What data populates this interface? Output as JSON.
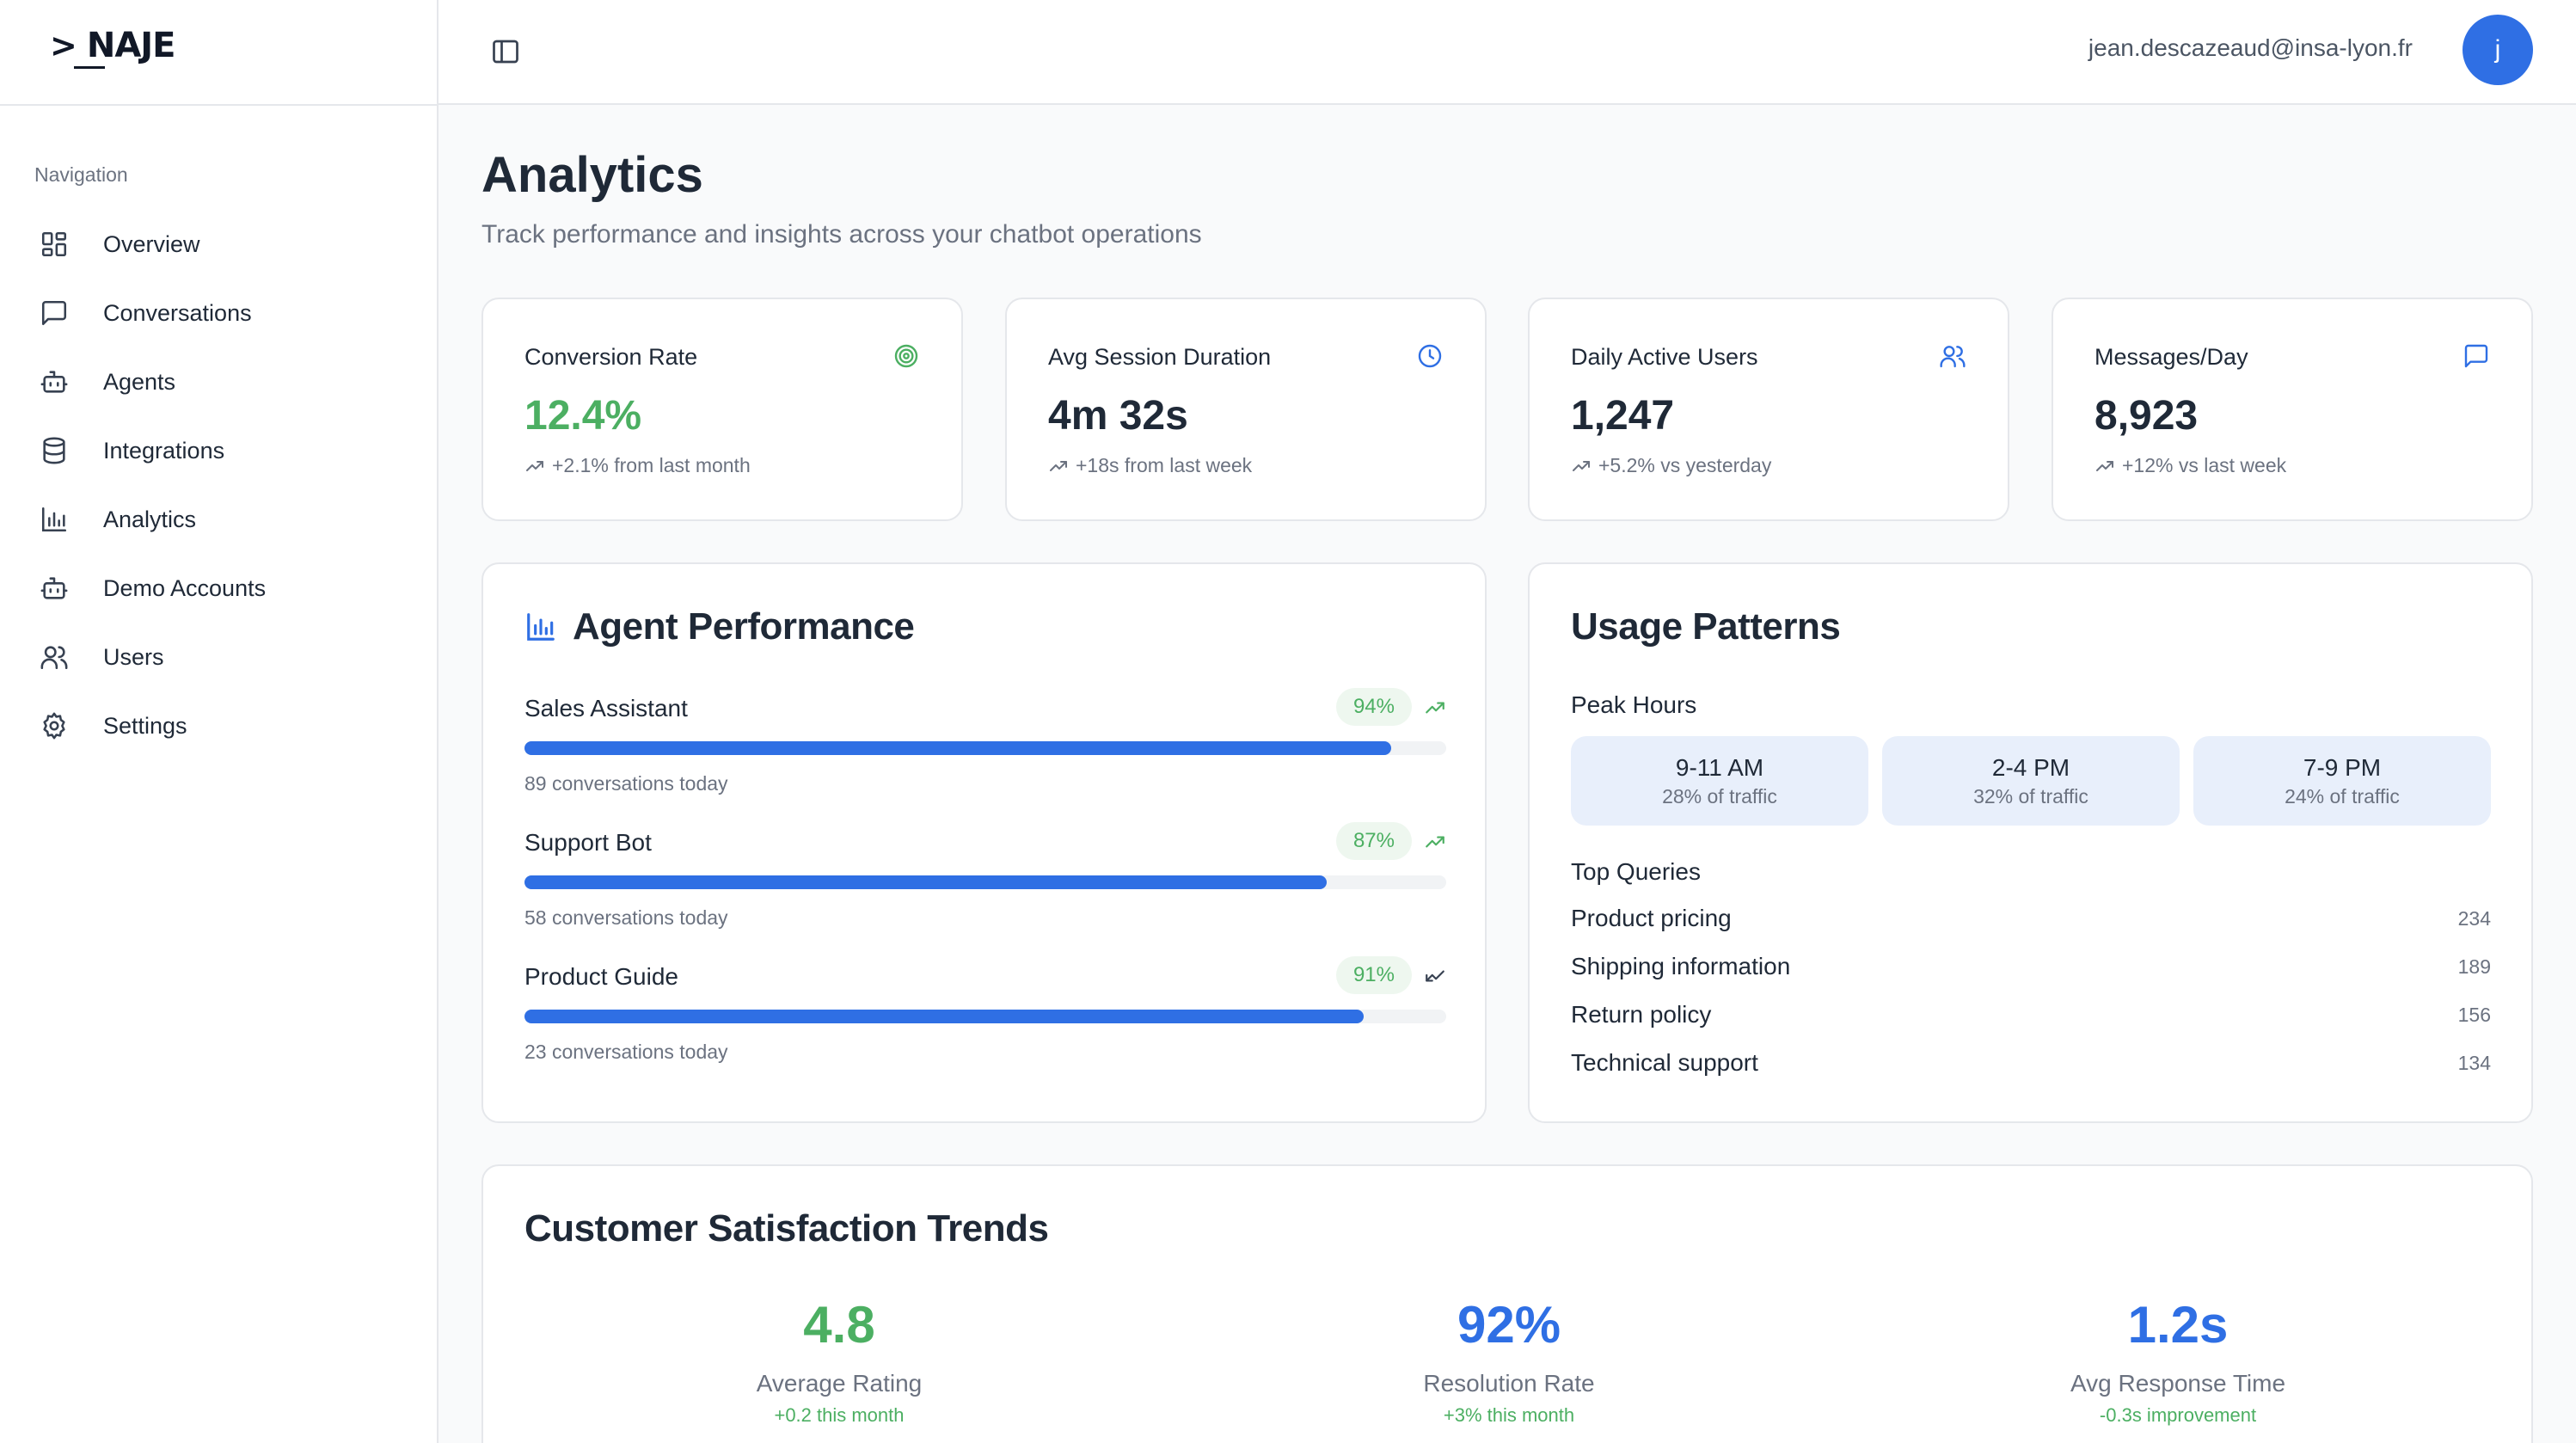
{
  "brand": {
    "logo_caret": ">",
    "logo_text": "NAJE"
  },
  "sidebar": {
    "section_title": "Navigation",
    "items": [
      {
        "label": "Overview",
        "icon": "grid-icon"
      },
      {
        "label": "Conversations",
        "icon": "message-square-icon"
      },
      {
        "label": "Agents",
        "icon": "bot-icon"
      },
      {
        "label": "Integrations",
        "icon": "database-icon"
      },
      {
        "label": "Analytics",
        "icon": "bar-chart-icon"
      },
      {
        "label": "Demo Accounts",
        "icon": "bot-icon"
      },
      {
        "label": "Users",
        "icon": "users-icon"
      },
      {
        "label": "Settings",
        "icon": "gear-icon"
      }
    ]
  },
  "topbar": {
    "email": "jean.descazeaud@insa-lyon.fr",
    "avatar_initial": "j"
  },
  "page": {
    "title": "Analytics",
    "subtitle": "Track performance and insights across your chatbot operations"
  },
  "stats": [
    {
      "title": "Conversion Rate",
      "value": "12.4%",
      "trend": "+2.1% from last month",
      "icon": "target-icon",
      "color": "#4caf62"
    },
    {
      "title": "Avg Session Duration",
      "value": "4m 32s",
      "trend": "+18s from last week",
      "icon": "clock-icon",
      "color": "#2f6fe4"
    },
    {
      "title": "Daily Active Users",
      "value": "1,247",
      "trend": "+5.2% vs yesterday",
      "icon": "users-icon",
      "color": "#2f6fe4"
    },
    {
      "title": "Messages/Day",
      "value": "8,923",
      "trend": "+12% vs last week",
      "icon": "message-square-icon",
      "color": "#2f6fe4"
    }
  ],
  "agent_performance": {
    "title": "Agent Performance",
    "agents": [
      {
        "name": "Sales Assistant",
        "percent_label": "94%",
        "percent": 94,
        "conversations": "89 conversations today",
        "trend": "up"
      },
      {
        "name": "Support Bot",
        "percent_label": "87%",
        "percent": 87,
        "conversations": "58 conversations today",
        "trend": "up"
      },
      {
        "name": "Product Guide",
        "percent_label": "91%",
        "percent": 91,
        "conversations": "23 conversations today",
        "trend": "down"
      }
    ]
  },
  "usage_patterns": {
    "title": "Usage Patterns",
    "peak_hours_label": "Peak Hours",
    "peak_hours": [
      {
        "time": "9-11 AM",
        "traffic": "28% of traffic"
      },
      {
        "time": "2-4 PM",
        "traffic": "32% of traffic"
      },
      {
        "time": "7-9 PM",
        "traffic": "24% of traffic"
      }
    ],
    "top_queries_label": "Top Queries",
    "top_queries": [
      {
        "label": "Product pricing",
        "count": "234"
      },
      {
        "label": "Shipping information",
        "count": "189"
      },
      {
        "label": "Return policy",
        "count": "156"
      },
      {
        "label": "Technical support",
        "count": "134"
      }
    ]
  },
  "satisfaction": {
    "title": "Customer Satisfaction Trends",
    "metrics": [
      {
        "value": "4.8",
        "label": "Average Rating",
        "change": "+0.2 this month",
        "color": "#4caf62"
      },
      {
        "value": "92%",
        "label": "Resolution Rate",
        "change": "+3% this month",
        "color": "#2f6fe4"
      },
      {
        "value": "1.2s",
        "label": "Avg Response Time",
        "change": "-0.3s improvement",
        "color": "#2f6fe4"
      }
    ]
  }
}
